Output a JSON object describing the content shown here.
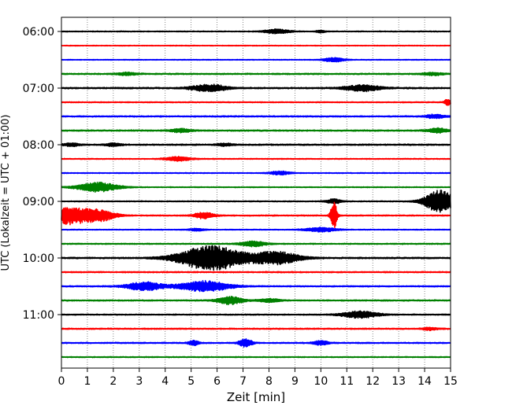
{
  "chart_data": {
    "type": "line",
    "xlabel": "Zeit  [min]",
    "ylabel": "UTC (Lokalzeit = UTC + 01:00)",
    "xlim": [
      0,
      15
    ],
    "x_ticks": [
      0,
      1,
      2,
      3,
      4,
      5,
      6,
      7,
      8,
      9,
      10,
      11,
      12,
      13,
      14,
      15
    ],
    "x_grid": "dotted",
    "row_minutes": 15,
    "start": "05:45",
    "hour_ticks": [
      "06:00",
      "07:00",
      "08:00",
      "09:00",
      "10:00",
      "11:00"
    ],
    "row_colors": [
      "#000000",
      "#ff0000",
      "#0000ff",
      "#008000"
    ],
    "traces": [
      {
        "start": "06:00",
        "color": "#000000",
        "noise": 0.35,
        "events": [
          {
            "t": 8.3,
            "a": 2.5,
            "w": 0.5
          },
          {
            "t": 10.0,
            "a": 1.2,
            "w": 0.2
          }
        ]
      },
      {
        "start": "06:15",
        "color": "#ff0000",
        "noise": 0.3,
        "events": []
      },
      {
        "start": "06:30",
        "color": "#0000ff",
        "noise": 0.3,
        "events": [
          {
            "t": 10.5,
            "a": 2.5,
            "w": 0.4
          }
        ]
      },
      {
        "start": "06:45",
        "color": "#008000",
        "noise": 0.55,
        "events": [
          {
            "t": 2.5,
            "a": 1.5,
            "w": 0.4
          },
          {
            "t": 14.3,
            "a": 1.5,
            "w": 0.4
          }
        ]
      },
      {
        "start": "07:00",
        "color": "#000000",
        "noise": 0.6,
        "events": [
          {
            "t": 5.7,
            "a": 4.0,
            "w": 0.7
          },
          {
            "t": 11.6,
            "a": 3.5,
            "w": 0.7
          }
        ]
      },
      {
        "start": "07:15",
        "color": "#ff0000",
        "noise": 0.4,
        "events": [
          {
            "t": 14.9,
            "a": 3.5,
            "w": 0.15
          }
        ]
      },
      {
        "start": "07:30",
        "color": "#0000ff",
        "noise": 0.55,
        "events": [
          {
            "t": 14.4,
            "a": 2.0,
            "w": 0.4
          }
        ]
      },
      {
        "start": "07:45",
        "color": "#008000",
        "noise": 0.55,
        "events": [
          {
            "t": 4.6,
            "a": 2.0,
            "w": 0.4
          },
          {
            "t": 14.5,
            "a": 2.5,
            "w": 0.4
          }
        ]
      },
      {
        "start": "08:00",
        "color": "#000000",
        "noise": 0.55,
        "events": [
          {
            "t": 0.4,
            "a": 1.8,
            "w": 0.3
          },
          {
            "t": 2.0,
            "a": 1.6,
            "w": 0.3
          },
          {
            "t": 6.3,
            "a": 1.5,
            "w": 0.3
          }
        ]
      },
      {
        "start": "08:15",
        "color": "#ff0000",
        "noise": 0.4,
        "events": [
          {
            "t": 4.5,
            "a": 2.5,
            "w": 0.5
          }
        ]
      },
      {
        "start": "08:30",
        "color": "#0000ff",
        "noise": 0.35,
        "events": [
          {
            "t": 8.4,
            "a": 2.0,
            "w": 0.4
          }
        ]
      },
      {
        "start": "08:45",
        "color": "#008000",
        "noise": 0.35,
        "events": [
          {
            "t": 1.4,
            "a": 5.5,
            "w": 0.8
          }
        ]
      },
      {
        "start": "09:00",
        "color": "#000000",
        "noise": 0.4,
        "events": [
          {
            "t": 10.5,
            "a": 2.5,
            "w": 0.3
          },
          {
            "t": 14.6,
            "a": 13.0,
            "w": 0.6
          }
        ]
      },
      {
        "start": "09:15",
        "color": "#ff0000",
        "noise": 0.45,
        "events": [
          {
            "t": 0.3,
            "a": 10.0,
            "w": 0.8
          },
          {
            "t": 1.5,
            "a": 6.0,
            "w": 0.6
          },
          {
            "t": 5.5,
            "a": 3.5,
            "w": 0.4
          },
          {
            "t": 10.5,
            "a": 17.0,
            "w": 0.12
          }
        ]
      },
      {
        "start": "09:30",
        "color": "#0000ff",
        "noise": 0.35,
        "events": [
          {
            "t": 5.2,
            "a": 1.4,
            "w": 0.3
          },
          {
            "t": 10.0,
            "a": 2.5,
            "w": 0.6
          }
        ]
      },
      {
        "start": "09:45",
        "color": "#008000",
        "noise": 0.45,
        "events": [
          {
            "t": 7.4,
            "a": 3.0,
            "w": 0.5
          }
        ]
      },
      {
        "start": "10:00",
        "color": "#000000",
        "noise": 0.6,
        "events": [
          {
            "t": 5.8,
            "a": 14.0,
            "w": 1.3
          },
          {
            "t": 8.3,
            "a": 7.0,
            "w": 0.9
          }
        ]
      },
      {
        "start": "10:15",
        "color": "#ff0000",
        "noise": 0.5,
        "events": []
      },
      {
        "start": "10:30",
        "color": "#0000ff",
        "noise": 0.5,
        "events": [
          {
            "t": 3.2,
            "a": 5.0,
            "w": 0.7
          },
          {
            "t": 5.5,
            "a": 6.0,
            "w": 1.0
          }
        ]
      },
      {
        "start": "10:45",
        "color": "#008000",
        "noise": 0.5,
        "events": [
          {
            "t": 6.5,
            "a": 4.5,
            "w": 0.5
          },
          {
            "t": 8.0,
            "a": 2.0,
            "w": 0.4
          }
        ]
      },
      {
        "start": "11:00",
        "color": "#000000",
        "noise": 0.45,
        "events": [
          {
            "t": 11.5,
            "a": 4.0,
            "w": 0.7
          }
        ]
      },
      {
        "start": "11:15",
        "color": "#ff0000",
        "noise": 0.5,
        "events": [
          {
            "t": 14.2,
            "a": 1.5,
            "w": 0.3
          }
        ]
      },
      {
        "start": "11:30",
        "color": "#0000ff",
        "noise": 0.5,
        "events": [
          {
            "t": 5.1,
            "a": 3.0,
            "w": 0.2
          },
          {
            "t": 7.0,
            "a": 3.0,
            "w": 0.2
          },
          {
            "t": 7.2,
            "a": 3.0,
            "w": 0.2
          },
          {
            "t": 10.0,
            "a": 2.5,
            "w": 0.3
          }
        ]
      },
      {
        "start": "11:45",
        "color": "#008000",
        "noise": 0.4,
        "events": []
      }
    ]
  }
}
